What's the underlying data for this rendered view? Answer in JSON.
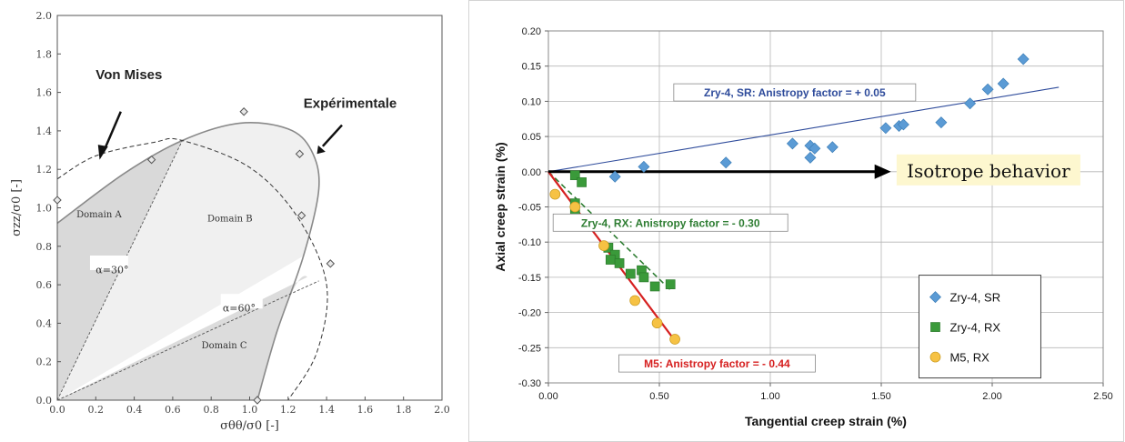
{
  "chart_data": [
    {
      "type": "scatter",
      "title": "",
      "xlabel": "σθθ/σ0 [-]",
      "ylabel": "σzz/σ0 [-]",
      "xlim": [
        0.0,
        2.0
      ],
      "ylim": [
        0.0,
        2.0
      ],
      "x_ticks": [
        "0.0",
        "0.2",
        "0.4",
        "0.6",
        "0.8",
        "1.0",
        "1.2",
        "1.4",
        "1.6",
        "1.8",
        "2.0"
      ],
      "y_ticks": [
        "0.0",
        "0.2",
        "0.4",
        "0.6",
        "0.8",
        "1.0",
        "1.2",
        "1.4",
        "1.6",
        "1.8",
        "2.0"
      ],
      "grid": false,
      "series": [
        {
          "name": "",
          "marker": "diamond",
          "points": [
            [
              0.0,
              1.04
            ],
            [
              0.49,
              1.25
            ],
            [
              0.97,
              1.5
            ],
            [
              1.26,
              1.28
            ],
            [
              1.27,
              0.96
            ],
            [
              1.42,
              0.71
            ],
            [
              1.04,
              0.0
            ]
          ]
        }
      ],
      "curves": {
        "von_mises": [
          [
            0.0,
            1.15
          ],
          [
            0.2,
            1.27
          ],
          [
            0.5,
            1.34
          ],
          [
            0.65,
            1.35
          ],
          [
            1.0,
            1.21
          ],
          [
            1.25,
            0.95
          ],
          [
            1.4,
            0.6
          ],
          [
            1.35,
            0.25
          ],
          [
            1.2,
            0.0
          ]
        ],
        "experimental": [
          [
            0.0,
            0.92
          ],
          [
            0.35,
            1.18
          ],
          [
            0.65,
            1.35
          ],
          [
            0.95,
            1.44
          ],
          [
            1.2,
            1.41
          ],
          [
            1.32,
            1.3
          ],
          [
            1.36,
            1.1
          ],
          [
            1.28,
            0.75
          ],
          [
            1.14,
            0.35
          ],
          [
            1.04,
            0.0
          ]
        ],
        "alpha_30_line": [
          [
            0.0,
            0.0
          ],
          [
            0.65,
            1.35
          ]
        ],
        "alpha_60_line": [
          [
            0.0,
            0.0
          ],
          [
            1.36,
            0.62
          ]
        ]
      },
      "annotations": {
        "von_mises": "Von Mises",
        "experimental": "Expérimentale",
        "domain_a": "Domain A",
        "domain_b": "Domain B",
        "domain_c": "Domain C",
        "alpha_30": "α=30°",
        "alpha_60": "α=60°"
      }
    },
    {
      "type": "scatter",
      "title": "",
      "xlabel": "Tangential creep strain (%)",
      "ylabel": "Axial creep strain (%)",
      "xlim": [
        0.0,
        2.5
      ],
      "ylim": [
        -0.3,
        0.2
      ],
      "x_ticks": [
        "0.00",
        "0.50",
        "1.00",
        "1.50",
        "2.00",
        "2.50"
      ],
      "y_ticks": [
        "-0.30",
        "-0.25",
        "-0.20",
        "-0.15",
        "-0.10",
        "-0.05",
        "0.00",
        "0.05",
        "0.10",
        "0.15",
        "0.20"
      ],
      "grid": true,
      "legend_position": "bottom-right",
      "series": [
        {
          "name": "Zry-4, SR",
          "color": "#5b9bd5",
          "marker": "diamond",
          "points": [
            [
              0.3,
              -0.007
            ],
            [
              0.43,
              0.007
            ],
            [
              0.8,
              0.013
            ],
            [
              1.1,
              0.04
            ],
            [
              1.18,
              0.02
            ],
            [
              1.18,
              0.037
            ],
            [
              1.2,
              0.033
            ],
            [
              1.28,
              0.035
            ],
            [
              1.52,
              0.062
            ],
            [
              1.58,
              0.065
            ],
            [
              1.6,
              0.067
            ],
            [
              1.77,
              0.07
            ],
            [
              1.9,
              0.097
            ],
            [
              1.98,
              0.117
            ],
            [
              2.05,
              0.125
            ],
            [
              2.14,
              0.16
            ]
          ],
          "trend": {
            "x": [
              0.0,
              2.3
            ],
            "y": [
              0.0,
              0.12
            ],
            "color": "#2e4b9b"
          }
        },
        {
          "name": "Zry-4, RX",
          "color": "#3a9a3a",
          "marker": "square",
          "points": [
            [
              0.12,
              -0.005
            ],
            [
              0.15,
              -0.015
            ],
            [
              0.12,
              -0.045
            ],
            [
              0.12,
              -0.055
            ],
            [
              0.12,
              -0.075
            ],
            [
              0.2,
              -0.078
            ],
            [
              0.27,
              -0.108
            ],
            [
              0.3,
              -0.118
            ],
            [
              0.28,
              -0.125
            ],
            [
              0.32,
              -0.13
            ],
            [
              0.37,
              -0.145
            ],
            [
              0.42,
              -0.14
            ],
            [
              0.43,
              -0.15
            ],
            [
              0.48,
              -0.163
            ],
            [
              0.55,
              -0.16
            ]
          ],
          "trend": {
            "x": [
              0.0,
              0.55
            ],
            "y": [
              0.0,
              -0.168
            ],
            "color": "#2e7d32",
            "dashed": true
          }
        },
        {
          "name": "M5, RX",
          "color": "#f6c244",
          "marker": "circle",
          "points": [
            [
              0.03,
              -0.032
            ],
            [
              0.12,
              -0.05
            ],
            [
              0.25,
              -0.105
            ],
            [
              0.39,
              -0.183
            ],
            [
              0.49,
              -0.215
            ],
            [
              0.57,
              -0.238
            ]
          ],
          "trend": {
            "x": [
              0.0,
              0.57
            ],
            "y": [
              0.0,
              -0.24
            ],
            "color": "#d62020"
          }
        }
      ],
      "annotations": {
        "isotrope": "Isotrope behavior",
        "sr_factor": "Zry-4, SR: Anistropy factor = + 0.05",
        "rx_factor": "Zry-4, RX: Anistropy factor = - 0.30",
        "m5_factor": "M5: Anistropy factor = - 0.44"
      }
    }
  ]
}
